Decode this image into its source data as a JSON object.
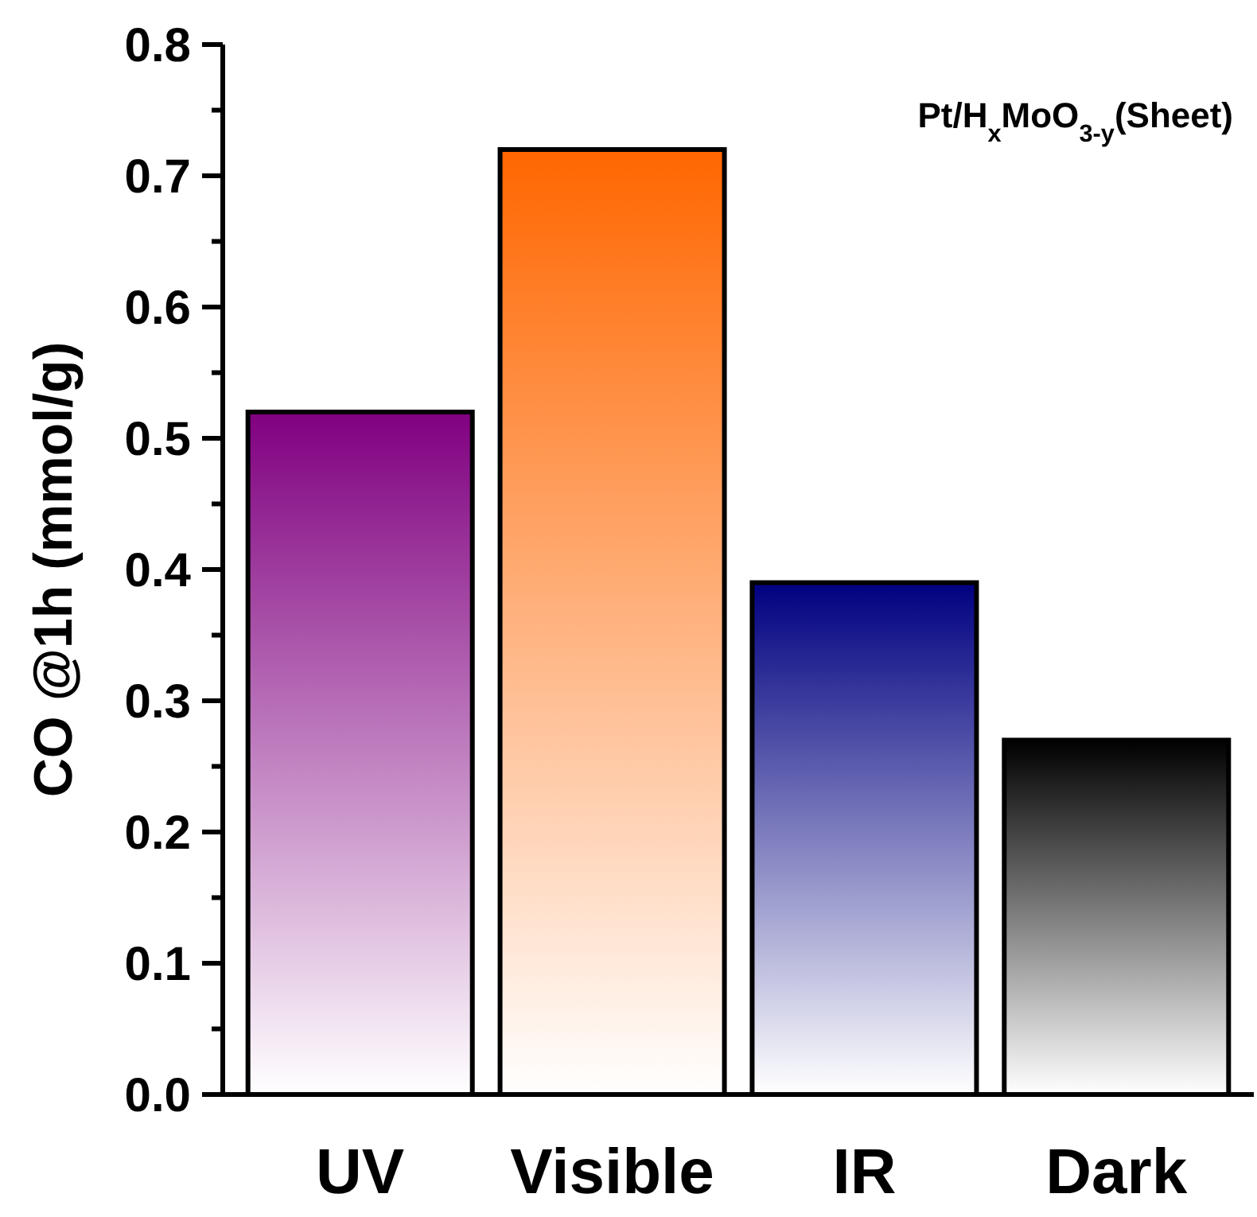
{
  "chart_data": {
    "type": "bar",
    "ylabel": "CO @1h (mmol/g)",
    "categories": [
      "UV",
      "Visible",
      "IR",
      "Dark"
    ],
    "values": [
      0.52,
      0.72,
      0.39,
      0.27
    ],
    "colors": [
      "#800080",
      "#ff6600",
      "#000080",
      "#000000"
    ],
    "ylim": [
      0,
      0.8
    ],
    "yticks": [
      {
        "value": 0,
        "label": "0.0"
      },
      {
        "value": 0.05,
        "label": null
      },
      {
        "value": 0.1,
        "label": "0.1"
      },
      {
        "value": 0.15,
        "label": null
      },
      {
        "value": 0.2,
        "label": "0.2"
      },
      {
        "value": 0.25,
        "label": null
      },
      {
        "value": 0.3,
        "label": "0.3"
      },
      {
        "value": 0.35,
        "label": null
      },
      {
        "value": 0.4,
        "label": "0.4"
      },
      {
        "value": 0.45,
        "label": null
      },
      {
        "value": 0.5,
        "label": "0.5"
      },
      {
        "value": 0.55,
        "label": null
      },
      {
        "value": 0.6,
        "label": "0.6"
      },
      {
        "value": 0.65,
        "label": null
      },
      {
        "value": 0.7,
        "label": "0.7"
      },
      {
        "value": 0.75,
        "label": null
      },
      {
        "value": 0.8,
        "label": "0.8"
      }
    ],
    "annotations": [
      "Pt/H$_{x}$MoO$_{3-y}$(Sheet)"
    ]
  }
}
